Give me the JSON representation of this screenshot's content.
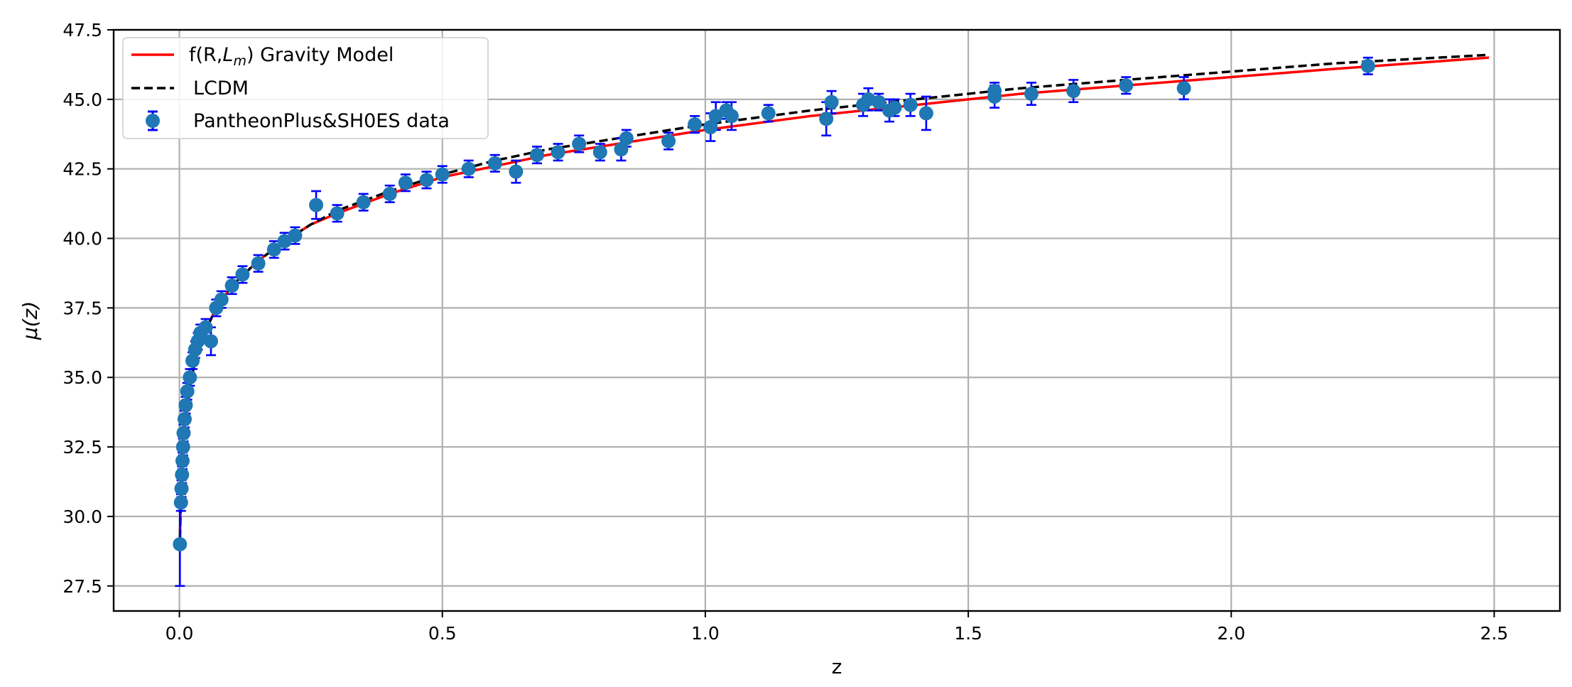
{
  "chart_data": {
    "type": "scatter",
    "title": "",
    "xlabel": "z",
    "ylabel": "μ(z)",
    "xlim": [
      -0.125,
      2.625
    ],
    "ylim": [
      26.6,
      47.5
    ],
    "x_ticks": [
      0.0,
      0.5,
      1.0,
      1.5,
      2.0,
      2.5
    ],
    "x_tick_labels": [
      "0.0",
      "0.5",
      "1.0",
      "1.5",
      "2.0",
      "2.5"
    ],
    "y_ticks": [
      27.5,
      30.0,
      32.5,
      35.0,
      37.5,
      40.0,
      42.5,
      45.0,
      47.5
    ],
    "y_tick_labels": [
      "27.5",
      "30.0",
      "32.5",
      "35.0",
      "37.5",
      "40.0",
      "42.5",
      "45.0",
      "47.5"
    ],
    "grid": true,
    "legend_position": "top-left",
    "series": [
      {
        "name": "f(R,Lm) Gravity Model",
        "kind": "line",
        "color": "#ff0000",
        "x": [
          0.001,
          0.005,
          0.01,
          0.02,
          0.03,
          0.05,
          0.07,
          0.1,
          0.15,
          0.2,
          0.25,
          0.3,
          0.4,
          0.5,
          0.6,
          0.7,
          0.8,
          0.9,
          1.0,
          1.2,
          1.4,
          1.6,
          1.8,
          2.0,
          2.2,
          2.49
        ],
        "y": [
          29.2,
          32.7,
          33.2,
          34.7,
          35.6,
          36.7,
          37.5,
          38.3,
          39.2,
          39.9,
          40.5,
          40.9,
          41.6,
          42.2,
          42.6,
          43.0,
          43.3,
          43.6,
          43.9,
          44.4,
          44.8,
          45.2,
          45.5,
          45.8,
          46.1,
          46.5
        ]
      },
      {
        "name": "LCDM",
        "kind": "dashed-line",
        "color": "#000000",
        "x": [
          0.001,
          0.005,
          0.01,
          0.02,
          0.03,
          0.05,
          0.07,
          0.1,
          0.15,
          0.2,
          0.25,
          0.3,
          0.4,
          0.5,
          0.6,
          0.7,
          0.8,
          0.9,
          1.0,
          1.2,
          1.4,
          1.6,
          1.8,
          2.0,
          2.2,
          2.49
        ],
        "y": [
          29.2,
          32.7,
          33.2,
          34.7,
          35.6,
          36.7,
          37.5,
          38.3,
          39.2,
          39.9,
          40.5,
          41.0,
          41.7,
          42.3,
          42.8,
          43.2,
          43.5,
          43.8,
          44.1,
          44.6,
          45.0,
          45.4,
          45.7,
          46.0,
          46.3,
          46.6
        ]
      },
      {
        "name": "PantheonPlus&SH0ES data",
        "kind": "errorbar",
        "color": "#1f77b4",
        "error_color": "#0000ff",
        "points": [
          [
            0.001,
            29.0,
            1.5
          ],
          [
            0.003,
            30.5,
            0.3
          ],
          [
            0.004,
            31.0,
            0.3
          ],
          [
            0.005,
            31.5,
            0.3
          ],
          [
            0.006,
            32.0,
            0.3
          ],
          [
            0.007,
            32.5,
            0.3
          ],
          [
            0.008,
            33.0,
            0.3
          ],
          [
            0.01,
            33.5,
            0.3
          ],
          [
            0.012,
            34.0,
            0.3
          ],
          [
            0.015,
            34.5,
            0.3
          ],
          [
            0.02,
            35.0,
            0.3
          ],
          [
            0.025,
            35.6,
            0.3
          ],
          [
            0.03,
            36.0,
            0.3
          ],
          [
            0.035,
            36.3,
            0.3
          ],
          [
            0.04,
            36.6,
            0.3
          ],
          [
            0.05,
            36.8,
            0.3
          ],
          [
            0.06,
            36.3,
            0.5
          ],
          [
            0.07,
            37.5,
            0.3
          ],
          [
            0.08,
            37.8,
            0.3
          ],
          [
            0.1,
            38.3,
            0.3
          ],
          [
            0.12,
            38.7,
            0.3
          ],
          [
            0.15,
            39.1,
            0.3
          ],
          [
            0.18,
            39.6,
            0.3
          ],
          [
            0.2,
            39.9,
            0.3
          ],
          [
            0.22,
            40.1,
            0.3
          ],
          [
            0.26,
            41.2,
            0.5
          ],
          [
            0.3,
            40.9,
            0.3
          ],
          [
            0.35,
            41.3,
            0.3
          ],
          [
            0.4,
            41.6,
            0.3
          ],
          [
            0.43,
            42.0,
            0.3
          ],
          [
            0.47,
            42.1,
            0.3
          ],
          [
            0.5,
            42.3,
            0.3
          ],
          [
            0.55,
            42.5,
            0.3
          ],
          [
            0.6,
            42.7,
            0.3
          ],
          [
            0.64,
            42.4,
            0.4
          ],
          [
            0.68,
            43.0,
            0.3
          ],
          [
            0.72,
            43.1,
            0.3
          ],
          [
            0.76,
            43.4,
            0.3
          ],
          [
            0.8,
            43.1,
            0.3
          ],
          [
            0.84,
            43.2,
            0.4
          ],
          [
            0.85,
            43.6,
            0.3
          ],
          [
            0.93,
            43.5,
            0.3
          ],
          [
            0.98,
            44.1,
            0.3
          ],
          [
            1.01,
            44.0,
            0.5
          ],
          [
            1.02,
            44.4,
            0.5
          ],
          [
            1.04,
            44.6,
            0.3
          ],
          [
            1.05,
            44.4,
            0.5
          ],
          [
            1.12,
            44.5,
            0.3
          ],
          [
            1.23,
            44.3,
            0.6
          ],
          [
            1.24,
            44.9,
            0.4
          ],
          [
            1.3,
            44.8,
            0.4
          ],
          [
            1.31,
            45.0,
            0.4
          ],
          [
            1.33,
            44.9,
            0.3
          ],
          [
            1.35,
            44.6,
            0.4
          ],
          [
            1.36,
            44.7,
            0.3
          ],
          [
            1.39,
            44.8,
            0.4
          ],
          [
            1.42,
            44.5,
            0.6
          ],
          [
            1.55,
            45.1,
            0.4
          ],
          [
            1.55,
            45.3,
            0.3
          ],
          [
            1.62,
            45.2,
            0.4
          ],
          [
            1.7,
            45.3,
            0.4
          ],
          [
            1.8,
            45.5,
            0.3
          ],
          [
            1.91,
            45.4,
            0.4
          ],
          [
            2.26,
            46.2,
            0.3
          ]
        ]
      }
    ]
  }
}
